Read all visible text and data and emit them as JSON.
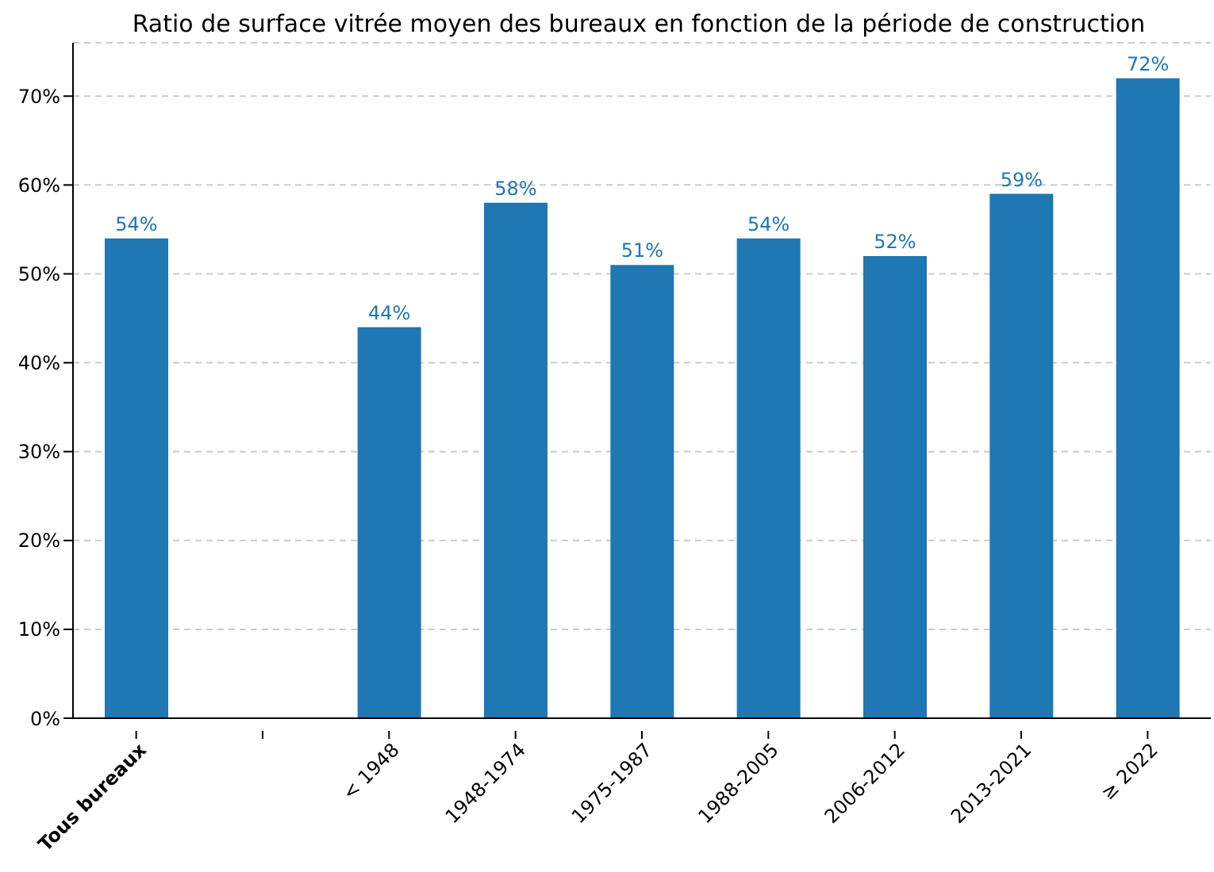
{
  "chart_data": {
    "type": "bar",
    "title": "Ratio de surface vitrée moyen des bureaux en fonction de la période de construction",
    "categories": [
      "Tous bureaux",
      null,
      "< 1948",
      "1948-1974",
      "1975-1987",
      "1988-2005",
      "2006-2012",
      "2013-2021",
      "≥ 2022"
    ],
    "values": [
      54,
      null,
      44,
      58,
      51,
      54,
      52,
      59,
      72
    ],
    "value_labels": [
      "54%",
      null,
      "44%",
      "58%",
      "51%",
      "54%",
      "52%",
      "59%",
      "72%"
    ],
    "color": "#1f77b4",
    "ylim": [
      0,
      76
    ],
    "yticks": [
      {
        "value": 0,
        "label": "0%"
      },
      {
        "value": 10,
        "label": "10%"
      },
      {
        "value": 20,
        "label": "20%"
      },
      {
        "value": 30,
        "label": "30%"
      },
      {
        "value": 40,
        "label": "40%"
      },
      {
        "value": 50,
        "label": "50%"
      },
      {
        "value": 60,
        "label": "60%"
      },
      {
        "value": 70,
        "label": "70%"
      }
    ],
    "grid": "y"
  }
}
